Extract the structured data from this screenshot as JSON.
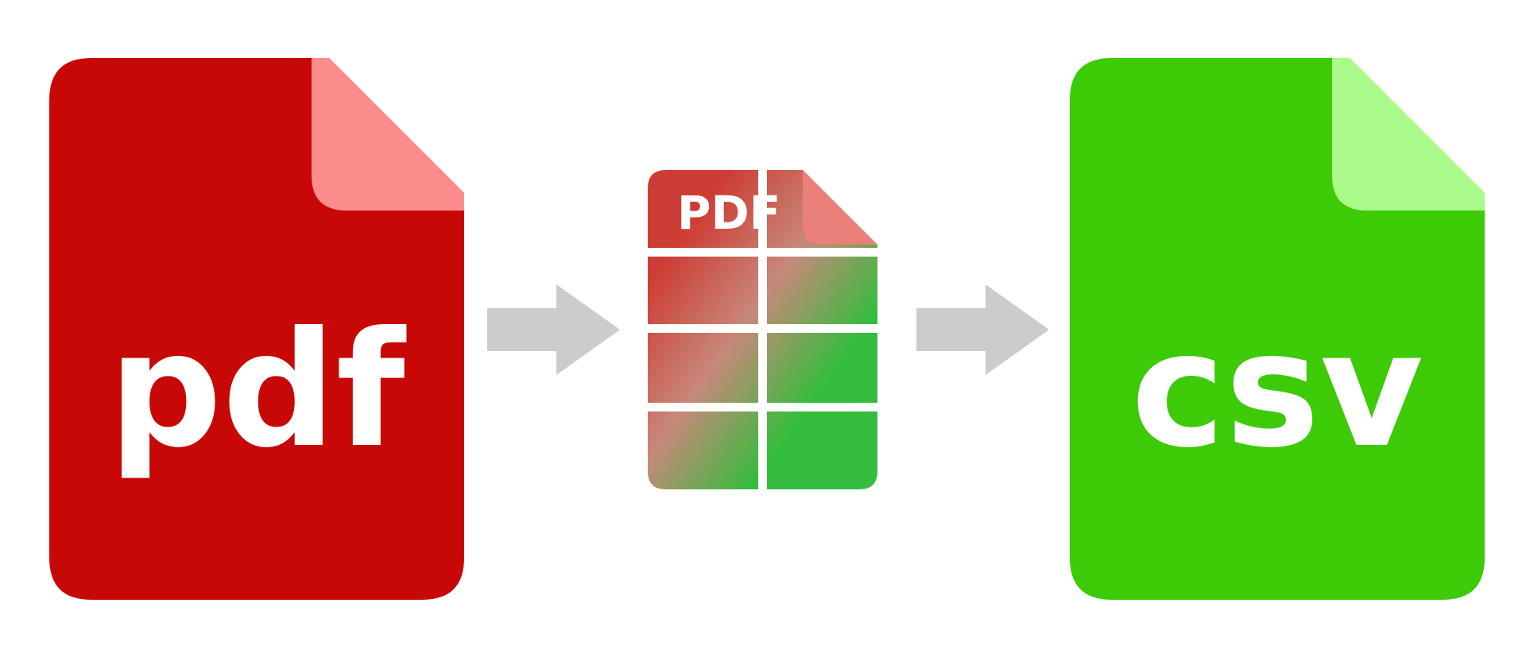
{
  "source_file": {
    "label": "pdf",
    "icon": "pdf-file-icon",
    "body_color": "#c80707",
    "fold_color": "#fd8d8b",
    "text_color": "#ffffff"
  },
  "middle_file": {
    "label": "PDF",
    "icon": "pdf-table-icon",
    "top_color": "#ce3d35",
    "fold_color": "#e98079",
    "bottom_color": "#34bd3c",
    "grid_color": "#ffffff"
  },
  "target_file": {
    "label": "csv",
    "icon": "csv-file-icon",
    "body_color": "#3dca07",
    "fold_color": "#abfb8a",
    "text_color": "#ffffff"
  },
  "arrows": [
    {
      "icon": "arrow-right-icon",
      "color": "#cccccc"
    },
    {
      "icon": "arrow-right-icon",
      "color": "#cccccc"
    }
  ]
}
